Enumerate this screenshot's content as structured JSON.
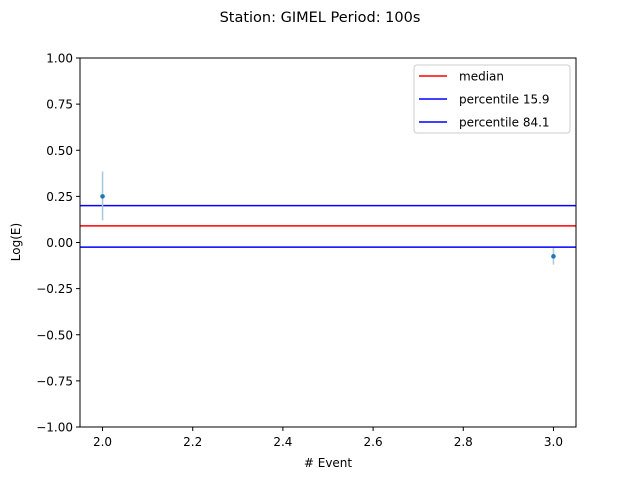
{
  "chart_data": {
    "type": "scatter",
    "title": "Station: GIMEL Period: 100s",
    "xlabel": "# Event",
    "ylabel": "Log(E)",
    "xlim": [
      1.95,
      3.05
    ],
    "ylim": [
      -1.0,
      1.0
    ],
    "x_ticks": [
      2.0,
      2.2,
      2.4,
      2.6,
      2.8,
      3.0
    ],
    "x_tick_labels": [
      "2.0",
      "2.2",
      "2.4",
      "2.6",
      "2.8",
      "3.0"
    ],
    "y_ticks": [
      -1.0,
      -0.75,
      -0.5,
      -0.25,
      0.0,
      0.25,
      0.5,
      0.75,
      1.0
    ],
    "y_tick_labels": [
      "−1.00",
      "−0.75",
      "−0.50",
      "−0.25",
      "0.00",
      "0.25",
      "0.50",
      "0.75",
      "1.00"
    ],
    "grid": false,
    "legend_position": "top-right",
    "points": [
      {
        "x": 2.0,
        "y": 0.25,
        "yerr_low": 0.12,
        "yerr_high": 0.385
      },
      {
        "x": 3.0,
        "y": -0.075,
        "yerr_low": -0.12,
        "yerr_high": -0.03
      }
    ],
    "hlines": [
      {
        "name": "median",
        "y": 0.09,
        "color": "#ff0000"
      },
      {
        "name": "percentile 15.9",
        "y": 0.2,
        "color": "#0000ff"
      },
      {
        "name": "percentile 84.1",
        "y": -0.025,
        "color": "#0000ff"
      }
    ],
    "point_color": "#1f77b4",
    "errorbar_color": "#a6c8e0"
  }
}
